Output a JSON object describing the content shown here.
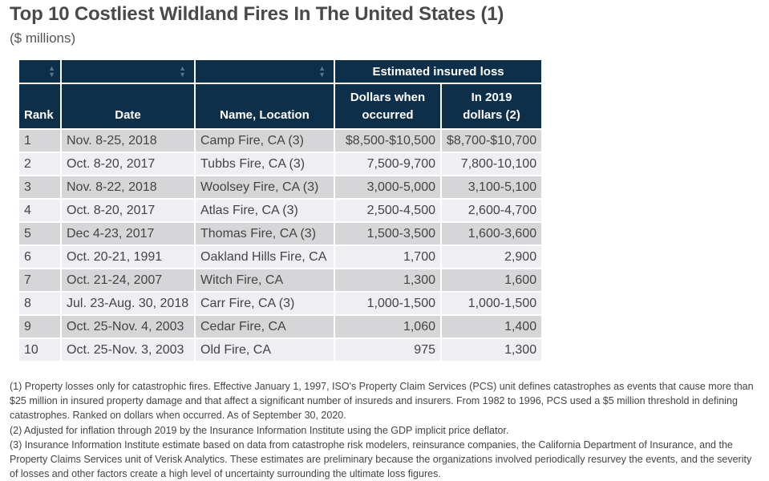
{
  "title": "Top 10 Costliest Wildland Fires In The United States (1)",
  "subtitle": "($ millions)",
  "table": {
    "group_header": "Estimated insured loss",
    "headers": {
      "rank": "Rank",
      "date": "Date",
      "name": "Name, Location",
      "occurred_line1": "Dollars when",
      "occurred_line2": "occurred",
      "y2019_line1": "In 2019",
      "y2019_line2": "dollars (2)"
    },
    "rows": [
      {
        "rank": "1",
        "date": "Nov. 8-25, 2018",
        "name": "Camp Fire, CA (3)",
        "occurred": "$8,500-$10,500",
        "y2019": "$8,700-$10,700"
      },
      {
        "rank": "2",
        "date": "Oct. 8-20, 2017",
        "name": "Tubbs Fire, CA (3)",
        "occurred": "7,500-9,700",
        "y2019": "7,800-10,100"
      },
      {
        "rank": "3",
        "date": "Nov. 8-22, 2018",
        "name": "Woolsey Fire, CA (3)",
        "occurred": "3,000-5,000",
        "y2019": "3,100-5,100"
      },
      {
        "rank": "4",
        "date": "Oct. 8-20, 2017",
        "name": "Atlas Fire, CA (3)",
        "occurred": "2,500-4,500",
        "y2019": "2,600-4,700"
      },
      {
        "rank": "5",
        "date": "Dec 4-23, 2017",
        "name": "Thomas Fire, CA (3)",
        "occurred": "1,500-3,500",
        "y2019": "1,600-3,600"
      },
      {
        "rank": "6",
        "date": "Oct. 20-21, 1991",
        "name": "Oakland Hills Fire, CA",
        "occurred": "1,700",
        "y2019": "2,900"
      },
      {
        "rank": "7",
        "date": "Oct. 21-24, 2007",
        "name": "Witch Fire, CA",
        "occurred": "1,300",
        "y2019": "1,600"
      },
      {
        "rank": "8",
        "date": "Jul. 23-Aug. 30, 2018",
        "name": "Carr Fire, CA (3)",
        "occurred": "1,000-1,500",
        "y2019": "1,000-1,500"
      },
      {
        "rank": "9",
        "date": "Oct. 25-Nov. 4, 2003",
        "name": "Cedar Fire, CA",
        "occurred": "1,060",
        "y2019": "1,400"
      },
      {
        "rank": "10",
        "date": "Oct. 25-Nov. 3, 2003",
        "name": "Old Fire, CA",
        "occurred": "975",
        "y2019": "1,300"
      }
    ]
  },
  "notes": [
    "(1) Property losses only for catastrophic fires. Effective January 1, 1997, ISO's Property Claim Services (PCS) unit defines catastrophes as events that cause more than $25 million in insured property damage and that affect a significant number of insureds and insurers. From 1982 to 1996, PCS used a $5 million threshold in defining catastrophes. Ranked on dollars when occurred. As of September 30, 2020.",
    "(2) Adjusted for inflation through 2019 by the Insurance Information Institute using the GDP implicit price deflator.",
    "(3) Insurance Information Institute estimate based on data from catastrophe risk modelers, reinsurance companies, the California Department of Insurance, and the Property Claims Services unit of Verisk Analytics. These estimates are preliminary because the organizations involved periodically resurvey the events, and the severity of losses and other factors create a high level of uncertainty surrounding the ultimate loss figures."
  ],
  "colors": {
    "header_bg": "#0d2f4a",
    "row_odd": "#d6d6d8",
    "row_even": "#eeeef3",
    "title": "#4a4a4a"
  },
  "icons": [
    "sort-arrows-icon"
  ]
}
